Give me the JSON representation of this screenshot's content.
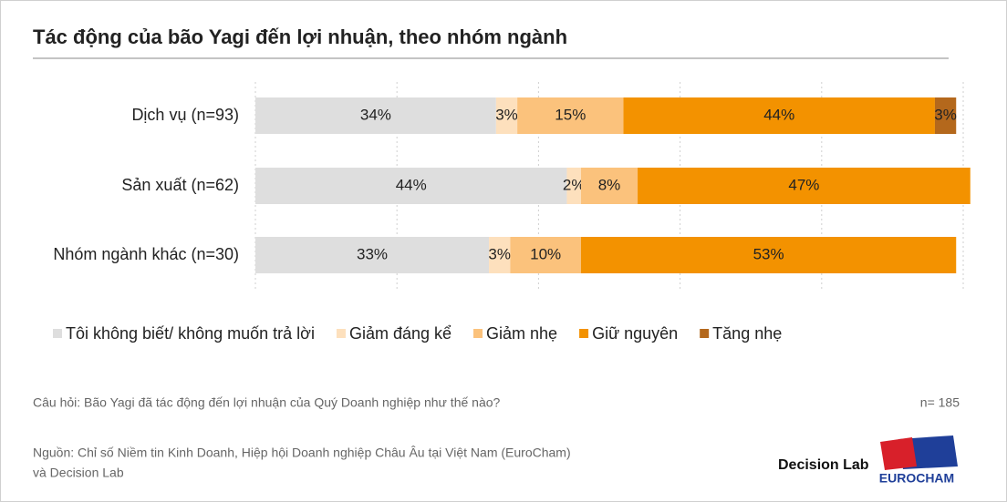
{
  "chart_data": {
    "type": "stacked-barh",
    "title": "Tác động của bão Yagi đến lợi nhuận, theo nhóm ngành",
    "categories": [
      "Dịch vụ (n=93)",
      "Sản xuất (n=62)",
      "Nhóm ngành khác (n=30)"
    ],
    "series": [
      {
        "name": "Tôi không biết/ không muốn trả lời",
        "color": "#dedede",
        "values": [
          34,
          44,
          33
        ],
        "value_labels": [
          "34%",
          "44%",
          "33%"
        ]
      },
      {
        "name": "Giảm đáng kể",
        "color": "#fde0bd",
        "values": [
          3,
          2,
          3
        ],
        "value_labels": [
          "3%",
          "2%",
          "3%"
        ]
      },
      {
        "name": "Giảm nhẹ",
        "color": "#fbc27c",
        "values": [
          15,
          8,
          10
        ],
        "value_labels": [
          "15%",
          "8%",
          "10%"
        ]
      },
      {
        "name": "Giữ nguyên",
        "color": "#f39200",
        "values": [
          44,
          47,
          53
        ],
        "value_labels": [
          "44%",
          "47%",
          "53%"
        ]
      },
      {
        "name": "Tăng nhẹ",
        "color": "#b4681c",
        "values": [
          3,
          null,
          null
        ],
        "value_labels": [
          "3%",
          null,
          null
        ]
      }
    ],
    "xlim": [
      0,
      100
    ],
    "xticks": [
      0,
      20,
      40,
      60,
      80,
      100
    ],
    "grid": true
  },
  "footer": {
    "question": "Câu hỏi: Bão Yagi đã tác động đến lợi nhuận của Quý Doanh nghiệp như thế nào?",
    "sample": "n= 185",
    "source_line1": "Nguồn: Chỉ số Niềm tin Kinh Doanh, Hiệp hội Doanh nghiệp Châu Âu tại Việt Nam (EuroCham)",
    "source_line2": "và Decision Lab",
    "logo1": "Decision Lab",
    "logo2": "EUROCHAM"
  }
}
